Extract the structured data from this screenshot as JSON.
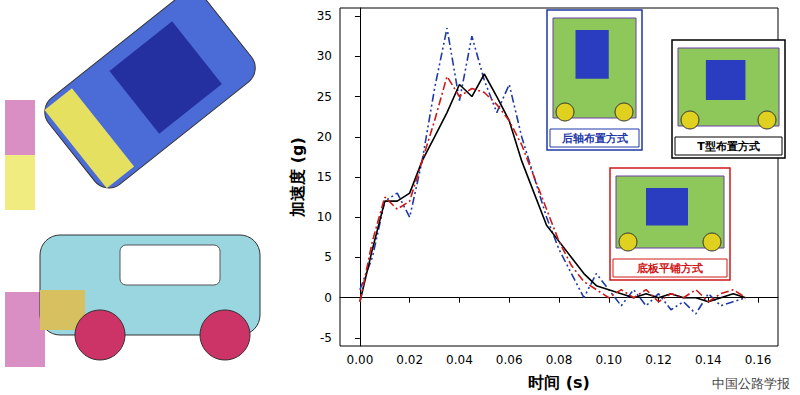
{
  "chart_data": {
    "type": "line",
    "x_label": "时间 (s)",
    "y_label": "加速度 (g)",
    "x": [
      0,
      0.005,
      0.01,
      0.015,
      0.02,
      0.025,
      0.03,
      0.035,
      0.04,
      0.045,
      0.05,
      0.055,
      0.06,
      0.065,
      0.07,
      0.075,
      0.08,
      0.085,
      0.09,
      0.095,
      0.1,
      0.105,
      0.11,
      0.115,
      0.12,
      0.125,
      0.13,
      0.135,
      0.14,
      0.145,
      0.15,
      0.155
    ],
    "series": [
      {
        "name": "后轴布置方式",
        "color": "#1f3aa8",
        "line_style": "dashdotdot",
        "values": [
          1,
          5,
          12,
          13,
          10,
          17,
          26,
          33.5,
          24.5,
          32.5,
          27,
          23,
          26.5,
          20,
          15,
          10,
          6,
          3,
          0,
          3,
          1,
          -1,
          1,
          -1,
          0.5,
          -1.5,
          -0.5,
          -2,
          0.5,
          -1,
          -0.5,
          0
        ]
      },
      {
        "name": "T型布置方式",
        "color": "#000000",
        "line_style": "solid",
        "values": [
          -0.5,
          6,
          12,
          12,
          13,
          17,
          20,
          23,
          26.5,
          25,
          27.8,
          25,
          22,
          17,
          13,
          9,
          7,
          5,
          3,
          1.5,
          1,
          0.5,
          0,
          0.5,
          0,
          0.5,
          0,
          0,
          -0.5,
          0,
          0.5,
          0
        ]
      },
      {
        "name": "底板平铺方式",
        "color": "#d01818",
        "line_style": "dashdot",
        "values": [
          -0.5,
          7,
          12.5,
          11,
          12,
          17,
          22,
          27.5,
          25,
          26,
          25.5,
          24,
          22,
          19,
          15,
          11,
          7,
          4,
          2,
          1,
          0,
          1,
          0,
          1,
          -0.5,
          0.5,
          0,
          1,
          -0.5,
          0.5,
          1,
          0
        ]
      }
    ],
    "xlim": [
      -0.008,
      0.168
    ],
    "xticks": [
      {
        "value": 0,
        "label": "0.00"
      },
      {
        "value": 0.02,
        "label": "0.02"
      },
      {
        "value": 0.04,
        "label": "0.04"
      },
      {
        "value": 0.06,
        "label": "0.06"
      },
      {
        "value": 0.08,
        "label": "0.08"
      },
      {
        "value": 0.1,
        "label": "0.10"
      },
      {
        "value": 0.12,
        "label": "0.12"
      },
      {
        "value": 0.14,
        "label": "0.14"
      },
      {
        "value": 0.16,
        "label": "0.16"
      }
    ],
    "ylim": [
      -6,
      36
    ],
    "yticks": [
      -5,
      0,
      5,
      10,
      15,
      20,
      25,
      30,
      35
    ],
    "grid": false,
    "legend": "top-right",
    "annotations": [
      "中国公路学报"
    ]
  }
}
